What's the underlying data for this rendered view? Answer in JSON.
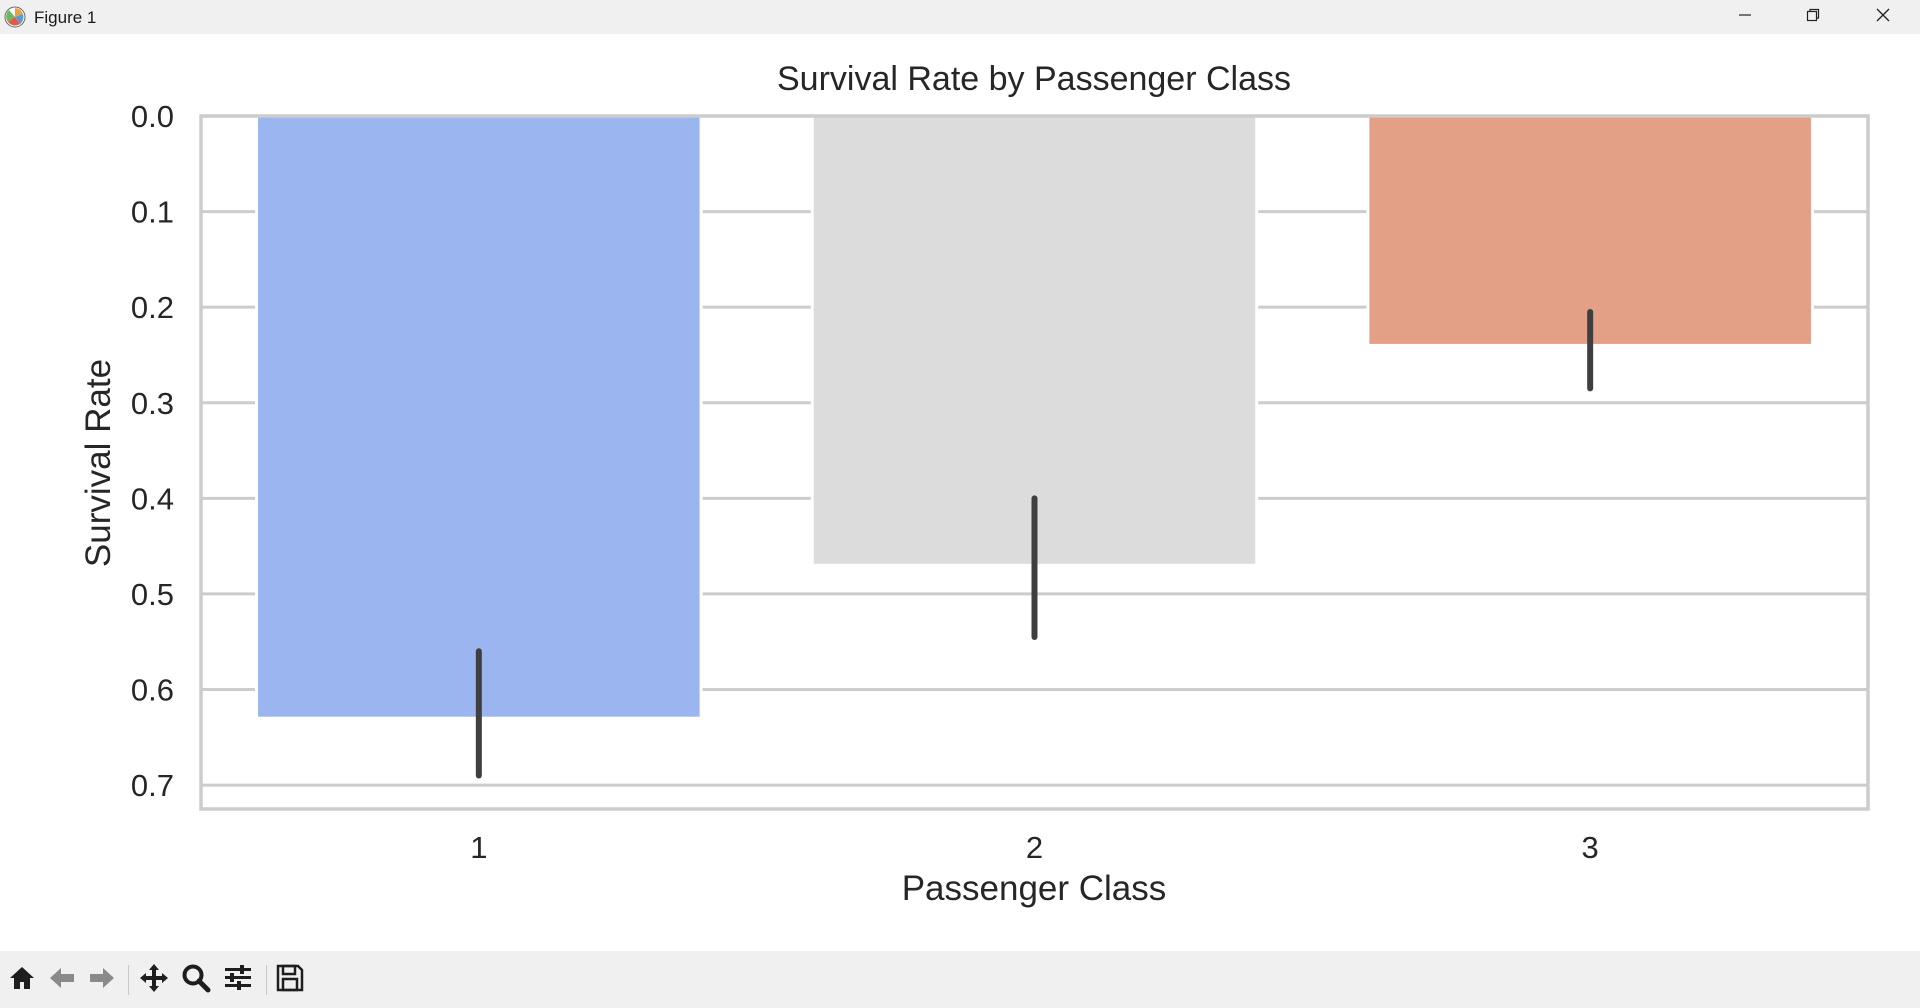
{
  "window": {
    "title": "Figure 1"
  },
  "titlebar_controls": {
    "minimize_icon": "minimize-icon",
    "restore_icon": "restore-icon",
    "close_icon": "close-icon"
  },
  "toolbar": {
    "tools": [
      {
        "name": "home",
        "icon": "home-icon"
      },
      {
        "name": "back",
        "icon": "arrow-left-icon"
      },
      {
        "name": "forward",
        "icon": "arrow-right-icon"
      },
      {
        "name": "pan",
        "icon": "move-icon"
      },
      {
        "name": "zoom",
        "icon": "magnifier-icon"
      },
      {
        "name": "configure-subplots",
        "icon": "sliders-icon"
      },
      {
        "name": "save",
        "icon": "floppy-disk-icon"
      }
    ]
  },
  "chart_data": {
    "type": "bar",
    "title": "Survival Rate by Passenger Class",
    "xlabel": "Passenger Class",
    "ylabel": "Survival Rate",
    "categories": [
      "1",
      "2",
      "3"
    ],
    "values": [
      0.63,
      0.47,
      0.24
    ],
    "error_bars": [
      [
        0.56,
        0.69
      ],
      [
        0.4,
        0.545
      ],
      [
        0.205,
        0.285
      ]
    ],
    "colors": [
      "#9ab5ef",
      "#dcdcdc",
      "#e49f87"
    ],
    "ylim": [
      0.725,
      0.0
    ],
    "y_inverted": true,
    "yticks": [
      "0.0",
      "0.1",
      "0.2",
      "0.3",
      "0.4",
      "0.5",
      "0.6",
      "0.7"
    ],
    "ytick_values": [
      0.0,
      0.1,
      0.2,
      0.3,
      0.4,
      0.5,
      0.6,
      0.7
    ],
    "grid": "horizontal",
    "grid_color": "#cccccc",
    "spine_color": "#cccccc",
    "errorbar_color": "#3f3f3f"
  }
}
